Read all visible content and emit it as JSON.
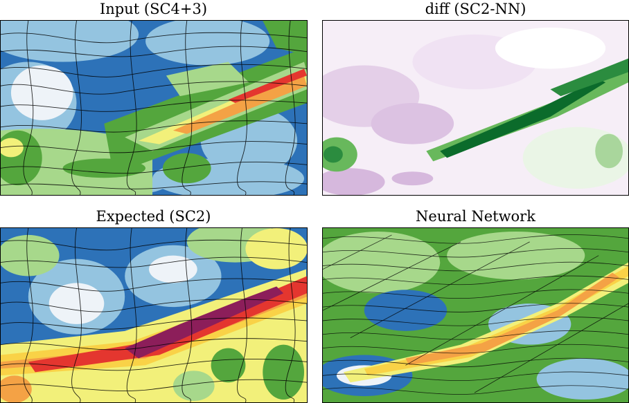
{
  "panels": [
    {
      "title": "Input (SC4+3)",
      "kind": "wind-field"
    },
    {
      "title": "diff (SC2-NN)",
      "kind": "difference-field"
    },
    {
      "title": "Expected (SC2)",
      "kind": "wind-field"
    },
    {
      "title": "Neural Network",
      "kind": "wind-field"
    }
  ],
  "colors": {
    "wind_scale": [
      "#ffffff",
      "#c7dcee",
      "#94c4e0",
      "#2d72b8",
      "#a7d88b",
      "#54a63d",
      "#1d8a2e",
      "#f2f07a",
      "#f9d247",
      "#f4a245",
      "#e4362f",
      "#8c1e5a"
    ],
    "diff_scale": [
      "#7b3a8f",
      "#c39fce",
      "#efe2f1",
      "#ffffff",
      "#d8efd0",
      "#68b85c",
      "#0b6b2b"
    ],
    "streamline": "#000000"
  }
}
